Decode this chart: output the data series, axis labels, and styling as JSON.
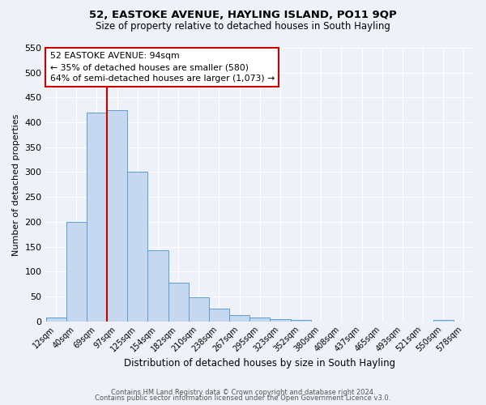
{
  "title1": "52, EASTOKE AVENUE, HAYLING ISLAND, PO11 9QP",
  "title2": "Size of property relative to detached houses in South Hayling",
  "xlabel": "Distribution of detached houses by size in South Hayling",
  "ylabel": "Number of detached properties",
  "bin_labels": [
    "12sqm",
    "40sqm",
    "69sqm",
    "97sqm",
    "125sqm",
    "154sqm",
    "182sqm",
    "210sqm",
    "238sqm",
    "267sqm",
    "295sqm",
    "323sqm",
    "352sqm",
    "380sqm",
    "408sqm",
    "437sqm",
    "465sqm",
    "493sqm",
    "521sqm",
    "550sqm",
    "578sqm"
  ],
  "bar_heights": [
    8,
    200,
    420,
    425,
    300,
    143,
    78,
    48,
    25,
    12,
    8,
    5,
    2,
    0,
    0,
    0,
    0,
    0,
    0,
    3,
    0
  ],
  "bar_color": "#c5d8f0",
  "bar_edge_color": "#5a9fd4",
  "vline_x_index": 3,
  "vline_color": "#cc0000",
  "annotation_line1": "52 EASTOKE AVENUE: 94sqm",
  "annotation_line2": "← 35% of detached houses are smaller (580)",
  "annotation_line3": "64% of semi-detached houses are larger (1,073) →",
  "ylim": [
    0,
    550
  ],
  "yticks": [
    0,
    50,
    100,
    150,
    200,
    250,
    300,
    350,
    400,
    450,
    500,
    550
  ],
  "footer1": "Contains HM Land Registry data © Crown copyright and database right 2024.",
  "footer2": "Contains public sector information licensed under the Open Government Licence v3.0.",
  "background_color": "#eef2f8",
  "grid_color": "#ffffff"
}
